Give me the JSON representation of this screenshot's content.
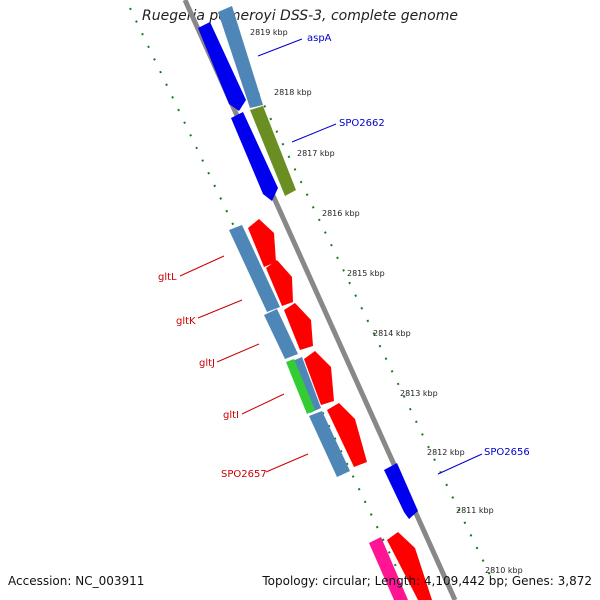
{
  "title": "Ruegeria pomeroyi DSS-3, complete genome",
  "footer": {
    "accession": "Accession: NC_003911",
    "summary": "Topology: circular; Length: 4,109,442 bp; Genes: 3,872"
  },
  "ticks": [
    "2819 kbp",
    "2818 kbp",
    "2817 kbp",
    "2816 kbp",
    "2815 kbp",
    "2814 kbp",
    "2813 kbp",
    "2812 kbp",
    "2811 kbp",
    "2810 kbp"
  ],
  "labels": {
    "aspA": "aspA",
    "spo2662": "SPO2662",
    "spo2656": "SPO2656",
    "gltL": "gltL",
    "gltK": "gltK",
    "gltJ": "gltJ",
    "gltI": "gltI",
    "spo2657": "SPO2657"
  },
  "colors": {
    "backbone": "#888888",
    "dots": "#1a7a1a",
    "gene_blue": "#0000ee",
    "gene_steel": "#4f86b8",
    "gene_olive": "#6b8e23",
    "gene_red": "#ff0000",
    "gene_green": "#33cc33",
    "gene_pink": "#ff1493",
    "label_blue": "#0000cc",
    "label_red": "#cc0000"
  }
}
